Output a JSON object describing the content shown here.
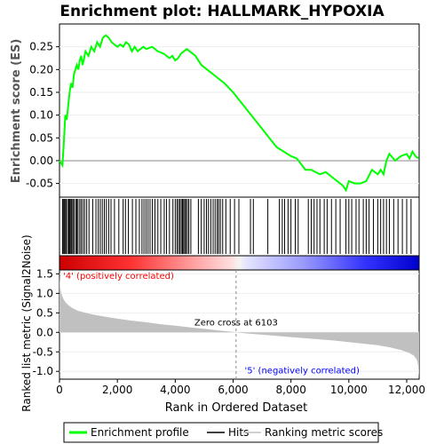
{
  "chart_data": {
    "type": "line",
    "title": "Enrichment plot: HALLMARK_HYPOXIA",
    "es_panel": {
      "ylabel": "Enrichment score (ES)",
      "ylim": [
        -0.08,
        0.3
      ],
      "yticks": [
        -0.05,
        0.0,
        0.05,
        0.1,
        0.15,
        0.2,
        0.25
      ],
      "ytick_labels": [
        "-0.05",
        "0.00",
        "0.05",
        "0.10",
        "0.15",
        "0.20",
        "0.25"
      ],
      "series": [
        {
          "name": "Enrichment profile",
          "color": "#00ff00",
          "x": [
            0,
            100,
            150,
            200,
            250,
            300,
            350,
            400,
            450,
            500,
            550,
            600,
            650,
            700,
            750,
            800,
            900,
            1000,
            1100,
            1200,
            1300,
            1400,
            1500,
            1600,
            1700,
            1800,
            1900,
            2000,
            2100,
            2200,
            2300,
            2400,
            2500,
            2600,
            2700,
            2800,
            2900,
            3000,
            3200,
            3400,
            3600,
            3800,
            3900,
            4000,
            4100,
            4200,
            4300,
            4400,
            4500,
            4700,
            4900,
            5100,
            5300,
            5500,
            5700,
            6000,
            6500,
            7000,
            7500,
            8000,
            8200,
            8500,
            8700,
            9000,
            9200,
            9500,
            9800,
            9900,
            10000,
            10200,
            10400,
            10600,
            10800,
            11000,
            11100,
            11200,
            11300,
            11400,
            11600,
            11800,
            12000,
            12100,
            12200,
            12300,
            12400
          ],
          "y": [
            0.0,
            -0.01,
            0.04,
            0.1,
            0.09,
            0.12,
            0.15,
            0.17,
            0.16,
            0.19,
            0.2,
            0.21,
            0.2,
            0.22,
            0.23,
            0.21,
            0.24,
            0.23,
            0.25,
            0.24,
            0.26,
            0.25,
            0.27,
            0.275,
            0.27,
            0.26,
            0.255,
            0.25,
            0.255,
            0.25,
            0.26,
            0.255,
            0.24,
            0.25,
            0.24,
            0.245,
            0.25,
            0.245,
            0.25,
            0.24,
            0.235,
            0.225,
            0.23,
            0.22,
            0.225,
            0.235,
            0.24,
            0.245,
            0.24,
            0.23,
            0.21,
            0.2,
            0.19,
            0.18,
            0.17,
            0.15,
            0.11,
            0.07,
            0.03,
            0.01,
            0.005,
            -0.02,
            -0.02,
            -0.03,
            -0.025,
            -0.04,
            -0.055,
            -0.065,
            -0.045,
            -0.05,
            -0.05,
            -0.045,
            -0.02,
            -0.03,
            -0.02,
            -0.03,
            0.0,
            0.015,
            0.0,
            0.01,
            0.015,
            0.005,
            0.02,
            0.01,
            0.005
          ]
        }
      ]
    },
    "hits_panel": {
      "legend_label": "Hits",
      "positions": [
        105,
        130,
        165,
        190,
        230,
        280,
        320,
        350,
        390,
        420,
        460,
        500,
        560,
        600,
        640,
        700,
        750,
        810,
        870,
        940,
        1020,
        1150,
        1260,
        1340,
        1410,
        1480,
        1550,
        1620,
        1700,
        1780,
        1900,
        2050,
        2200,
        2280,
        2380,
        2520,
        2640,
        2760,
        2850,
        2920,
        2990,
        3060,
        3130,
        3210,
        3300,
        3400,
        3500,
        3620,
        3700,
        3800,
        3920,
        4000,
        4060,
        4110,
        4160,
        4210,
        4250,
        4290,
        4330,
        4370,
        4420,
        4470,
        4540,
        4800,
        4900,
        5000,
        5080,
        5150,
        5230,
        5310,
        5380,
        5450,
        5500,
        5560,
        5640,
        5750,
        5900,
        6050,
        6200,
        6600,
        6700,
        7200,
        7600,
        7700,
        7780,
        7900,
        8000,
        8150,
        8250,
        8600,
        8700,
        8800,
        8900,
        9000,
        9150,
        9250,
        9400,
        9550,
        9700,
        9900,
        10000,
        10100,
        10250,
        10350,
        10500,
        10600,
        10700,
        10850,
        11000,
        11100,
        11200,
        11300,
        11400,
        11550,
        11700,
        11850,
        12000,
        12150
      ]
    },
    "ranked_panel": {
      "ylabel": "Ranked list metric (Signal2Noise)",
      "ylim": [
        -1.2,
        1.6
      ],
      "yticks": [
        -1.0,
        -0.5,
        0.0,
        0.5,
        1.0,
        1.5
      ],
      "ytick_labels": [
        "-1.0",
        "-0.5",
        "0.0",
        "0.5",
        "1.0",
        "1.5"
      ],
      "fill_color": "#c0c0c0",
      "metric_x": [
        0,
        20,
        60,
        120,
        200,
        300,
        450,
        650,
        900,
        1200,
        1600,
        2000,
        2500,
        3000,
        3500,
        4000,
        4500,
        5000,
        5500,
        6000,
        6103,
        6500,
        7000,
        7500,
        8000,
        8500,
        9000,
        9500,
        10000,
        10500,
        11000,
        11400,
        11800,
        12100,
        12250,
        12350,
        12400,
        12430
      ],
      "metric_y": [
        1.5,
        1.15,
        1.0,
        0.88,
        0.78,
        0.7,
        0.62,
        0.55,
        0.5,
        0.45,
        0.4,
        0.35,
        0.3,
        0.26,
        0.21,
        0.17,
        0.13,
        0.09,
        0.05,
        0.01,
        0.0,
        -0.03,
        -0.06,
        -0.09,
        -0.12,
        -0.15,
        -0.18,
        -0.21,
        -0.25,
        -0.29,
        -0.33,
        -0.38,
        -0.45,
        -0.53,
        -0.6,
        -0.7,
        -0.85,
        -1.18
      ],
      "zero_cross_label": "Zero cross at 6103",
      "zero_cross": 6103,
      "pos_label": "'4' (positively correlated)",
      "neg_label": "'5' (negatively correlated)",
      "pos_color": "#ff0000",
      "neg_color": "#0000ff"
    },
    "x_axis": {
      "xlabel": "Rank in Ordered Dataset",
      "xlim": [
        0,
        12430
      ],
      "xticks": [
        0,
        2000,
        4000,
        6000,
        8000,
        10000,
        12000
      ],
      "xtick_labels": [
        "0",
        "2,000",
        "4,000",
        "6,000",
        "8,000",
        "10,000",
        "12,000"
      ]
    },
    "legend": [
      {
        "label": "Enrichment profile",
        "color": "#00ff00"
      },
      {
        "label": "Hits",
        "color": "#000000"
      },
      {
        "label": "Ranking metric scores",
        "color": "#c0c0c0"
      }
    ]
  }
}
